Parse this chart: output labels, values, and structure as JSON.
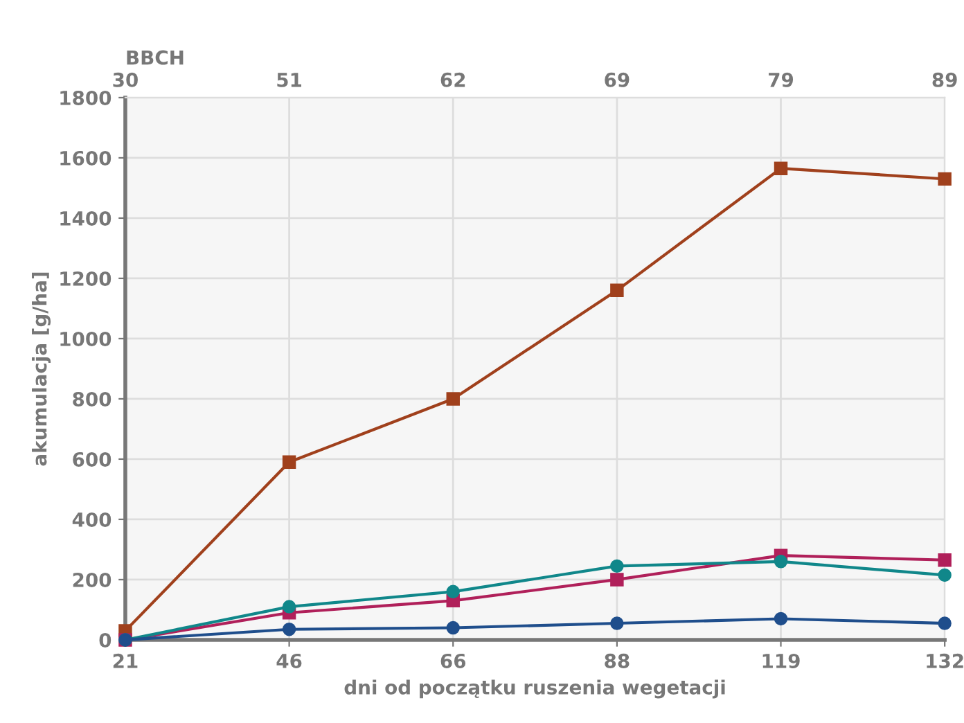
{
  "chart_data": {
    "type": "line",
    "categories": [
      "21",
      "46",
      "66",
      "88",
      "119",
      "132"
    ],
    "xlabel": "dni od początku ruszenia wegetacji",
    "ylabel": "akumulacja [g/ha]",
    "x2label": "BBCH",
    "annotations": [
      "30",
      "51",
      "62",
      "69",
      "79",
      "89"
    ],
    "ylim": [
      0,
      1800
    ],
    "yticks": [
      0,
      200,
      400,
      600,
      800,
      1000,
      1200,
      1400,
      1600,
      1800
    ],
    "grid": true,
    "series": [
      {
        "color": "#a0401c",
        "marker": "square",
        "values": [
          30,
          590,
          800,
          1160,
          1565,
          1530
        ]
      },
      {
        "color": "#b0205a",
        "marker": "square",
        "values": [
          0,
          90,
          130,
          200,
          280,
          265
        ]
      },
      {
        "color": "#10878a",
        "marker": "circle",
        "values": [
          0,
          110,
          160,
          245,
          260,
          215
        ]
      },
      {
        "color": "#1f4e8c",
        "marker": "circle",
        "values": [
          0,
          35,
          40,
          55,
          70,
          55
        ]
      }
    ]
  }
}
